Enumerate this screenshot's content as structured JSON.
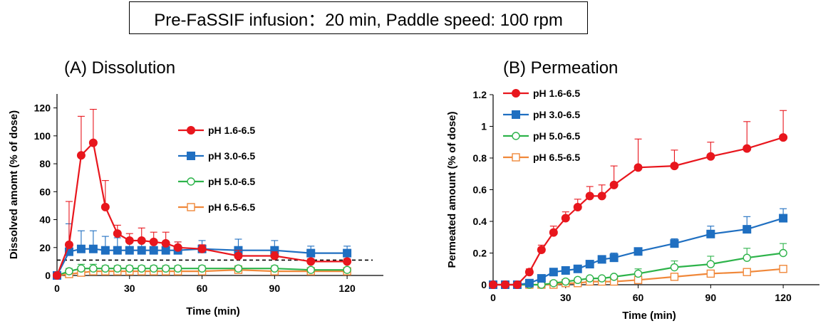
{
  "banner": "Pre-FaSSIF infusion：20 min,  Paddle speed: 100 rpm",
  "colors": {
    "pH 1.6-6.5": "#e8161d",
    "pH 3.0-6.5": "#1f6fc1",
    "pH 5.0-6.5": "#2db34a",
    "pH 6.5-6.5": "#f0883a"
  },
  "chart_data": [
    {
      "type": "line",
      "title": "(A) Dissolution",
      "xlabel": "Time (min)",
      "ylabel": "Dissolved amomt (% of dose)",
      "xlim": [
        0,
        135
      ],
      "ylim": [
        0,
        130
      ],
      "xticks": [
        0,
        30,
        60,
        90,
        120
      ],
      "yticks": [
        0,
        20,
        40,
        60,
        80,
        100,
        120
      ],
      "reference_line": {
        "y": 11,
        "style": "dashed"
      },
      "legend_position": "upper-right",
      "series": [
        {
          "name": "pH 1.6-6.5",
          "marker": "circle-filled",
          "x": [
            0,
            5,
            10,
            15,
            20,
            25,
            30,
            35,
            40,
            45,
            50,
            60,
            75,
            90,
            105,
            120
          ],
          "y": [
            0,
            22,
            86,
            95,
            49,
            30,
            25,
            25,
            24,
            23,
            20,
            19,
            14,
            14,
            10,
            10
          ],
          "err": [
            0,
            31,
            28,
            24,
            19,
            6,
            5,
            9,
            7,
            8,
            4,
            3,
            4,
            3,
            2,
            2
          ]
        },
        {
          "name": "pH 3.0-6.5",
          "marker": "square-filled",
          "x": [
            0,
            5,
            10,
            15,
            20,
            25,
            30,
            35,
            40,
            45,
            50,
            60,
            75,
            90,
            105,
            120
          ],
          "y": [
            0,
            17,
            19,
            19,
            18,
            18,
            18,
            18,
            18,
            18,
            18,
            19,
            18,
            18,
            16,
            16
          ],
          "err": [
            0,
            20,
            13,
            13,
            10,
            9,
            8,
            7,
            6,
            6,
            6,
            6,
            8,
            7,
            5,
            5
          ]
        },
        {
          "name": "pH 5.0-6.5",
          "marker": "circle-open",
          "x": [
            0,
            5,
            10,
            15,
            20,
            25,
            30,
            35,
            40,
            45,
            50,
            60,
            75,
            90,
            105,
            120
          ],
          "y": [
            0,
            3,
            5,
            5,
            5,
            5,
            5,
            5,
            5,
            5,
            5,
            5,
            5,
            5,
            4,
            4
          ],
          "err": [
            0,
            2,
            3,
            3,
            2,
            2,
            2,
            2,
            2,
            2,
            2,
            2,
            2,
            2,
            1,
            1
          ]
        },
        {
          "name": "pH 6.5-6.5",
          "marker": "square-open",
          "x": [
            0,
            5,
            10,
            15,
            20,
            25,
            30,
            35,
            40,
            45,
            50,
            60,
            75,
            90,
            105,
            120
          ],
          "y": [
            0,
            1,
            2,
            3,
            3,
            3,
            3,
            3,
            3,
            3,
            3,
            3,
            4,
            3,
            3,
            3
          ],
          "err": [
            0,
            1,
            1,
            1,
            1,
            1,
            1,
            1,
            1,
            1,
            1,
            1,
            1,
            1,
            1,
            1
          ]
        }
      ]
    },
    {
      "type": "line",
      "title": "(B) Permeation",
      "xlabel": "Time (min)",
      "ylabel": "Permeated amount (% of dose)",
      "xlim": [
        0,
        135
      ],
      "ylim": [
        0,
        1.2
      ],
      "xticks": [
        0,
        30,
        60,
        90,
        120
      ],
      "yticks": [
        0,
        0.2,
        0.4,
        0.6,
        0.8,
        1,
        1.2
      ],
      "legend_position": "upper-left",
      "series": [
        {
          "name": "pH 1.6-6.5",
          "marker": "circle-filled",
          "x": [
            0,
            5,
            10,
            15,
            20,
            25,
            30,
            35,
            40,
            45,
            50,
            60,
            75,
            90,
            105,
            120
          ],
          "y": [
            0,
            0,
            0,
            0.08,
            0.22,
            0.33,
            0.42,
            0.49,
            0.56,
            0.56,
            0.63,
            0.74,
            0.75,
            0.81,
            0.86,
            0.93
          ],
          "err": [
            0,
            0,
            0,
            0.02,
            0.03,
            0.04,
            0.04,
            0.05,
            0.06,
            0.07,
            0.12,
            0.18,
            0.1,
            0.09,
            0.17,
            0.17
          ]
        },
        {
          "name": "pH 3.0-6.5",
          "marker": "square-filled",
          "x": [
            0,
            5,
            10,
            15,
            20,
            25,
            30,
            35,
            40,
            45,
            50,
            60,
            75,
            90,
            105,
            120
          ],
          "y": [
            0,
            0,
            0,
            0.01,
            0.04,
            0.08,
            0.09,
            0.1,
            0.13,
            0.16,
            0.17,
            0.21,
            0.26,
            0.32,
            0.35,
            0.42
          ],
          "err": [
            0,
            0,
            0,
            0.01,
            0.01,
            0.01,
            0.02,
            0.02,
            0.02,
            0.02,
            0.03,
            0.02,
            0.03,
            0.05,
            0.08,
            0.06
          ]
        },
        {
          "name": "pH 5.0-6.5",
          "marker": "circle-open",
          "x": [
            0,
            5,
            10,
            15,
            20,
            25,
            30,
            35,
            40,
            45,
            50,
            60,
            75,
            90,
            105,
            120
          ],
          "y": [
            0,
            0,
            0,
            0,
            0,
            0.01,
            0.02,
            0.03,
            0.04,
            0.04,
            0.05,
            0.07,
            0.11,
            0.13,
            0.17,
            0.2
          ],
          "err": [
            0,
            0,
            0,
            0,
            0,
            0.01,
            0.01,
            0.01,
            0.01,
            0.01,
            0.01,
            0.03,
            0.04,
            0.05,
            0.06,
            0.06
          ]
        },
        {
          "name": "pH 6.5-6.5",
          "marker": "square-open",
          "x": [
            0,
            5,
            10,
            15,
            20,
            25,
            30,
            35,
            40,
            45,
            50,
            60,
            75,
            90,
            105,
            120
          ],
          "y": [
            0,
            0,
            0,
            0,
            0,
            0,
            0.01,
            0.01,
            0.02,
            0.02,
            0.02,
            0.03,
            0.05,
            0.07,
            0.08,
            0.1
          ],
          "err": [
            0,
            0,
            0,
            0,
            0,
            0,
            0,
            0,
            0,
            0,
            0.01,
            0.01,
            0.01,
            0.02,
            0.02,
            0.02
          ]
        }
      ]
    }
  ]
}
